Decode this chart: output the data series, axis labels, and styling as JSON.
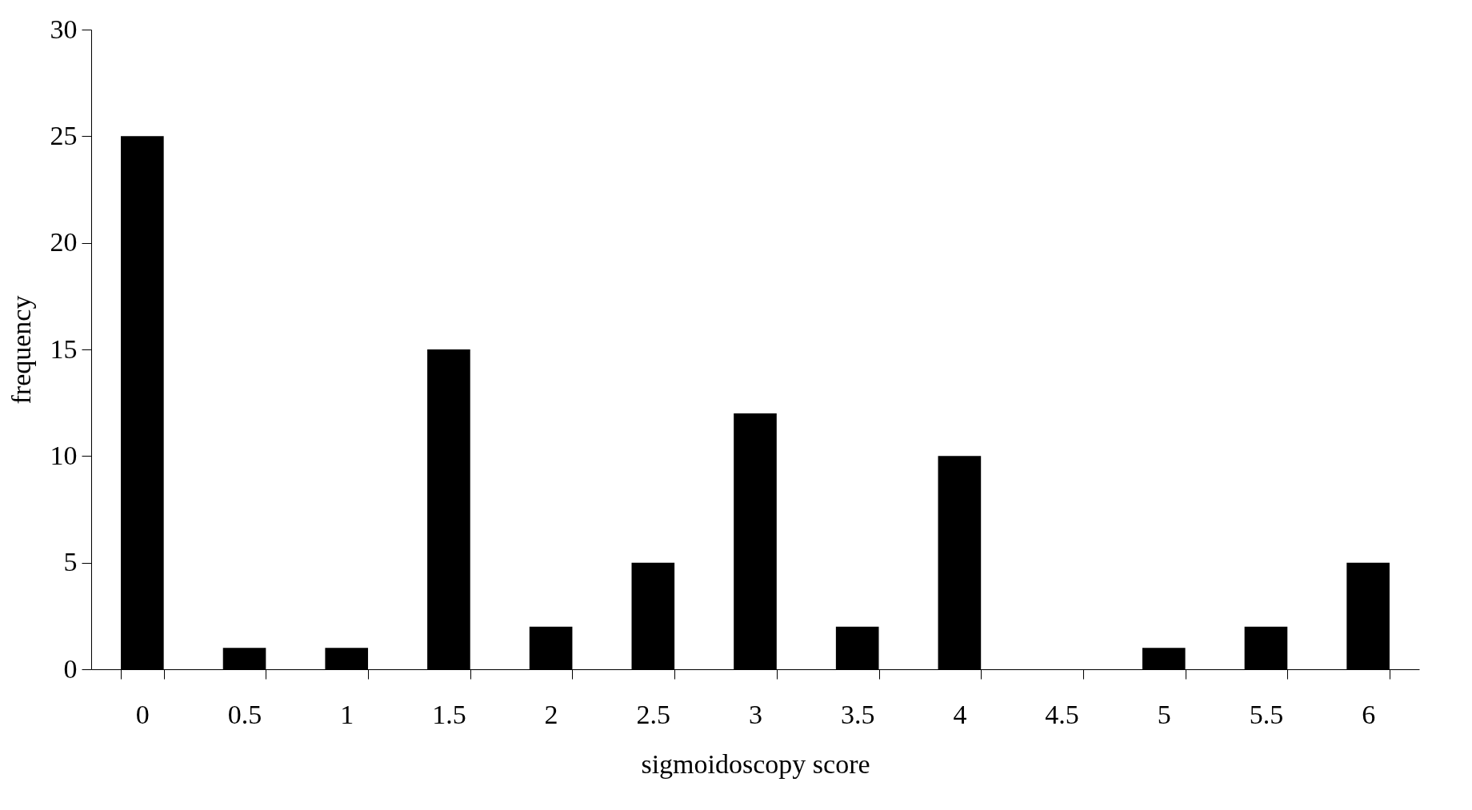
{
  "chart_data": {
    "type": "bar",
    "xlabel": "sigmoidoscopy score",
    "ylabel": "frequency",
    "categories": [
      "0",
      "0.5",
      "1",
      "1.5",
      "2",
      "2.5",
      "3",
      "3.5",
      "4",
      "4.5",
      "5",
      "5.5",
      "6"
    ],
    "values": [
      25,
      1,
      1,
      15,
      2,
      5,
      12,
      2,
      10,
      0,
      1,
      2,
      5
    ],
    "color": "#000000",
    "ylim": [
      0,
      30
    ],
    "yticks": [
      0,
      5,
      10,
      15,
      20,
      25,
      30
    ],
    "grid": false
  }
}
